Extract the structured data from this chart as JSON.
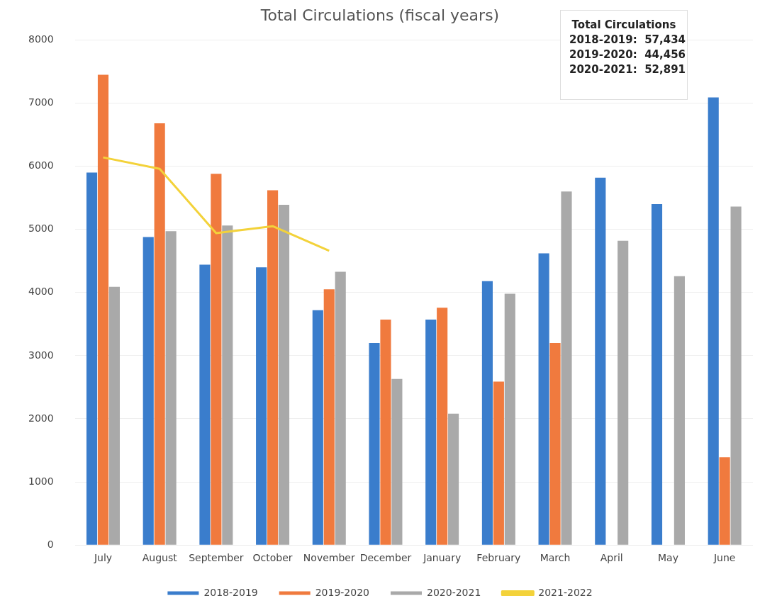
{
  "chart_data": {
    "type": "bar",
    "title": "Total Circulations (fiscal years)",
    "categories": [
      "July",
      "August",
      "September",
      "October",
      "November",
      "December",
      "January",
      "February",
      "March",
      "April",
      "May",
      "June"
    ],
    "series": [
      {
        "name": "2018-2019",
        "color": "#3a7dcc",
        "values": [
          5900,
          4880,
          4440,
          4400,
          3720,
          3200,
          3570,
          4180,
          4620,
          5820,
          5400,
          7090
        ]
      },
      {
        "name": "2019-2020",
        "color": "#f07a3e",
        "values": [
          7450,
          6680,
          5880,
          5620,
          4050,
          3570,
          3760,
          2590,
          3200,
          null,
          null,
          1390
        ]
      },
      {
        "name": "2020-2021",
        "color": "#a9a9a9",
        "values": [
          4090,
          4970,
          5060,
          5390,
          4330,
          2630,
          2080,
          3980,
          5600,
          4820,
          4260,
          5360
        ]
      },
      {
        "name": "2021-2022",
        "color": "#f3d23a",
        "type": "line",
        "values": [
          6140,
          5960,
          4940,
          5050,
          4660,
          null,
          null,
          null,
          null,
          null,
          null,
          null
        ]
      }
    ],
    "ylim": [
      0,
      8000
    ],
    "yticks": [
      0,
      1000,
      2000,
      3000,
      4000,
      5000,
      6000,
      7000,
      8000
    ],
    "grid": "y",
    "legend": "bottom",
    "marker": "none",
    "annotations": [
      "Total Circulations",
      "2018-2019:  57,434",
      "2019-2020:  44,456",
      "2020-2021:  52,891"
    ]
  }
}
